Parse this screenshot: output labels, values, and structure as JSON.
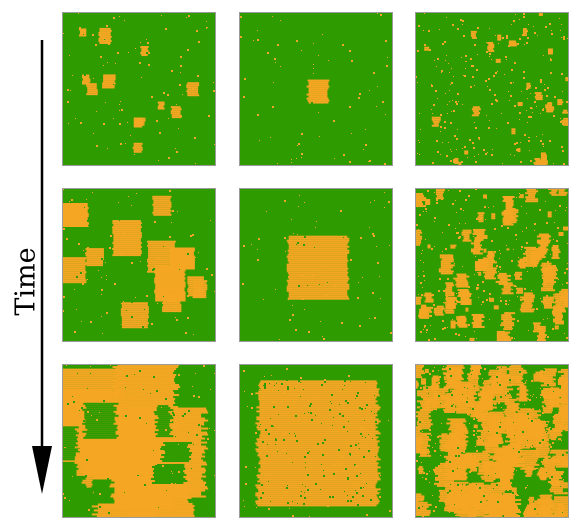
{
  "axis": {
    "label": "Time"
  },
  "colors": {
    "background": "#2E9B00",
    "domain": "#F5A623",
    "frame": "#9B9B9B",
    "arrow": "#000000"
  },
  "grid": {
    "rows": 3,
    "cols": 3,
    "panels": [
      {
        "row": 1,
        "col": 1,
        "pattern": "many-small-square-nuclei",
        "orange_fraction": 0.04
      },
      {
        "row": 1,
        "col": 2,
        "pattern": "single-central-nucleus",
        "orange_fraction": 0.02
      },
      {
        "row": 1,
        "col": 3,
        "pattern": "fine-scattered-speckle",
        "orange_fraction": 0.12
      },
      {
        "row": 2,
        "col": 1,
        "pattern": "many-small-square-nuclei",
        "orange_fraction": 0.22
      },
      {
        "row": 2,
        "col": 2,
        "pattern": "single-central-nucleus",
        "orange_fraction": 0.15
      },
      {
        "row": 2,
        "col": 3,
        "pattern": "fine-scattered-speckle",
        "orange_fraction": 0.38
      },
      {
        "row": 3,
        "col": 1,
        "pattern": "many-small-square-nuclei",
        "orange_fraction": 0.68
      },
      {
        "row": 3,
        "col": 2,
        "pattern": "single-central-nucleus",
        "orange_fraction": 0.6
      },
      {
        "row": 3,
        "col": 3,
        "pattern": "fine-scattered-speckle",
        "orange_fraction": 0.7
      }
    ]
  }
}
